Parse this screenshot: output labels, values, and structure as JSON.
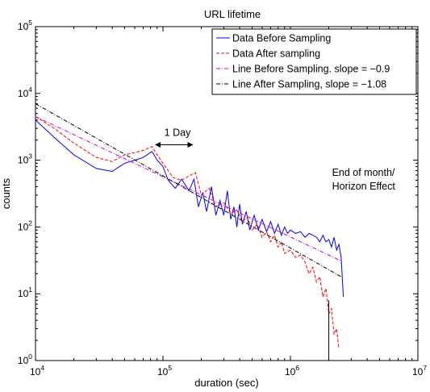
{
  "chart_data": {
    "type": "line",
    "title": "URL lifetime",
    "xlabel": "duration (sec)",
    "ylabel": "counts",
    "xscale": "log",
    "yscale": "log",
    "xlim": [
      10000,
      10000000
    ],
    "ylim": [
      1,
      100000
    ],
    "x_ticks": [
      {
        "base": "10",
        "exp": "4"
      },
      {
        "base": "10",
        "exp": "5"
      },
      {
        "base": "10",
        "exp": "6"
      },
      {
        "base": "10",
        "exp": "7"
      }
    ],
    "y_ticks": [
      {
        "base": "10",
        "exp": "0"
      },
      {
        "base": "10",
        "exp": "1"
      },
      {
        "base": "10",
        "exp": "2"
      },
      {
        "base": "10",
        "exp": "3"
      },
      {
        "base": "10",
        "exp": "4"
      },
      {
        "base": "10",
        "exp": "5"
      }
    ],
    "grid": false,
    "legend_position": "top-right",
    "series": [
      {
        "name": "Data Before Sampling",
        "color": "#0000ff",
        "style": "solid",
        "x": [
          10000,
          14000,
          20000,
          30000,
          40000,
          50000,
          60000,
          70000,
          82000,
          90000,
          100000,
          110000,
          125000,
          140000,
          160000,
          175000,
          190000,
          205000,
          220000,
          240000,
          260000,
          280000,
          300000,
          320000,
          340000,
          360000,
          380000,
          400000,
          420000,
          450000,
          480000,
          520000,
          560000,
          600000,
          650000,
          700000,
          750000,
          800000,
          850000,
          900000,
          950000,
          1000000,
          1100000,
          1200000,
          1300000,
          1400000,
          1500000,
          1600000,
          1700000,
          1800000,
          1900000,
          2000000,
          2100000,
          2200000,
          2300000,
          2400000,
          2500000,
          2600000
        ],
        "y": [
          4000,
          2200,
          1200,
          750,
          680,
          900,
          1000,
          1100,
          1350,
          1000,
          800,
          500,
          380,
          520,
          350,
          520,
          200,
          330,
          170,
          400,
          150,
          250,
          150,
          350,
          130,
          200,
          100,
          220,
          110,
          170,
          90,
          150,
          90,
          130,
          85,
          120,
          80,
          110,
          75,
          100,
          80,
          90,
          80,
          85,
          70,
          80,
          75,
          70,
          60,
          75,
          60,
          65,
          50,
          70,
          45,
          55,
          35,
          9
        ]
      },
      {
        "name": "Data After sampling",
        "color": "#ff0000",
        "style": "dashed",
        "x": [
          10000,
          14000,
          20000,
          30000,
          40000,
          50000,
          60000,
          70000,
          82000,
          90000,
          100000,
          120000,
          140000,
          160000,
          180000,
          200000,
          230000,
          260000,
          300000,
          340000,
          380000,
          420000,
          460000,
          500000,
          550000,
          600000,
          650000,
          700000,
          750000,
          800000,
          850000,
          900000,
          1000000,
          1100000,
          1200000,
          1300000,
          1400000,
          1500000,
          1600000,
          1700000,
          1800000,
          1900000,
          2000000,
          2100000,
          2200000,
          2300000,
          2400000
        ],
        "y": [
          4500,
          3000,
          1800,
          1100,
          950,
          1200,
          1300,
          1400,
          1600,
          1200,
          900,
          550,
          500,
          580,
          650,
          300,
          380,
          200,
          230,
          160,
          180,
          120,
          140,
          90,
          110,
          70,
          85,
          60,
          75,
          50,
          60,
          40,
          45,
          35,
          38,
          30,
          20,
          25,
          15,
          18,
          9,
          12,
          5,
          6,
          2.5,
          3,
          1.5
        ]
      },
      {
        "name": "Line Before Sampling. slope = −0.9",
        "color": "#cc00cc",
        "style": "dash-dot",
        "x": [
          10000,
          2500000
        ],
        "y": [
          4500,
          31
        ]
      },
      {
        "name": "Line After Sampling, slope = −1.08",
        "color": "#000000",
        "style": "dash-dot",
        "x": [
          10000,
          2500000
        ],
        "y": [
          7000,
          18
        ]
      }
    ],
    "vertical_line": {
      "x": 2000000
    },
    "annotations": [
      {
        "text": "1 Day",
        "x": 130000,
        "y": 2300
      },
      {
        "text_lines": [
          "End of month/",
          "Horizon Effect"
        ]
      }
    ],
    "day_arrow": {
      "x_start": 86400,
      "x_end": 172800,
      "y": 1700
    }
  }
}
